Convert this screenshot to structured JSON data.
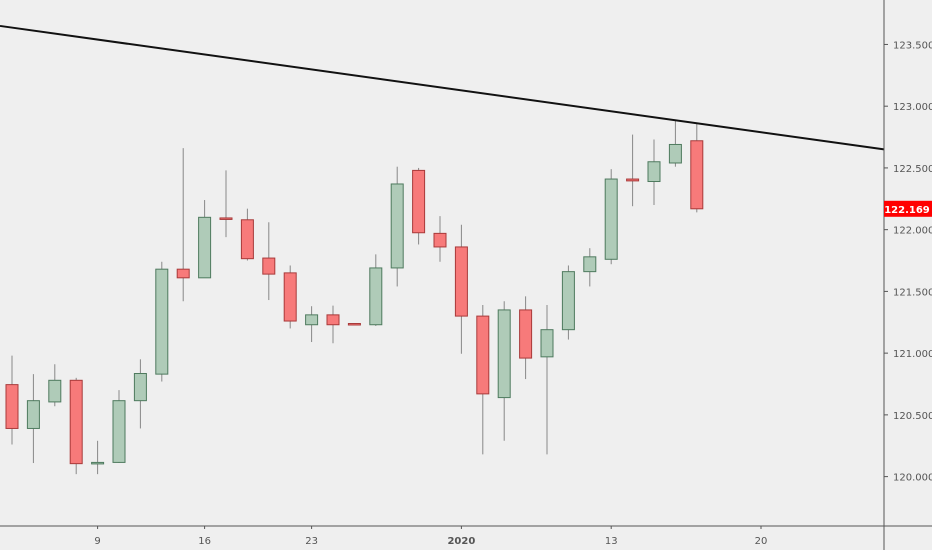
{
  "chart_data": {
    "type": "candlestick",
    "title": "",
    "colors": {
      "up_fill": "#afcbb8",
      "up_stroke": "#4e7a5e",
      "down_fill": "#f77a7a",
      "down_stroke": "#a83a3a",
      "wick": "#888888",
      "trendline": "#111111",
      "last_price_bg": "#ff0000",
      "background": "#efefef",
      "axis": "#555555"
    },
    "ylim": [
      119.6,
      123.86
    ],
    "y_ticks": [
      "120.000",
      "120.500",
      "121.000",
      "121.500",
      "122.000",
      "122.500",
      "123.000",
      "123.500"
    ],
    "x_tick_labels": [
      {
        "label": "9",
        "bar": 4
      },
      {
        "label": "16",
        "bar": 9
      },
      {
        "label": "23",
        "bar": 14
      },
      {
        "label": "2020",
        "bar": 21,
        "bold": true
      },
      {
        "label": "13",
        "bar": 28
      },
      {
        "label": "20",
        "bar": 35
      }
    ],
    "last_price": "122.169",
    "candles": [
      [
        120.745,
        120.98,
        120.26,
        120.39
      ],
      [
        120.39,
        120.83,
        120.11,
        120.615
      ],
      [
        120.605,
        120.91,
        120.57,
        120.78
      ],
      [
        120.78,
        120.8,
        120.02,
        120.105
      ],
      [
        120.11,
        120.29,
        120.02,
        120.115
      ],
      [
        120.115,
        120.7,
        120.11,
        120.615
      ],
      [
        120.615,
        120.95,
        120.39,
        120.835
      ],
      [
        120.83,
        121.74,
        120.77,
        121.68
      ],
      [
        121.68,
        122.66,
        121.42,
        121.61
      ],
      [
        121.61,
        122.24,
        121.61,
        122.1
      ],
      [
        122.095,
        122.48,
        121.94,
        122.085
      ],
      [
        122.08,
        122.17,
        121.75,
        121.765
      ],
      [
        121.77,
        122.06,
        121.43,
        121.64
      ],
      [
        121.65,
        121.71,
        121.2,
        121.26
      ],
      [
        121.23,
        121.38,
        121.09,
        121.31
      ],
      [
        121.31,
        121.385,
        121.08,
        121.23
      ],
      [
        121.24,
        121.24,
        121.23,
        121.235
      ],
      [
        121.23,
        121.8,
        121.22,
        121.69
      ],
      [
        121.69,
        122.51,
        121.54,
        122.37
      ],
      [
        122.48,
        122.5,
        121.88,
        121.975
      ],
      [
        121.97,
        122.11,
        121.74,
        121.86
      ],
      [
        121.86,
        122.04,
        120.995,
        121.3
      ],
      [
        121.3,
        121.39,
        120.18,
        120.67
      ],
      [
        120.64,
        121.42,
        120.29,
        121.35
      ],
      [
        121.35,
        121.46,
        120.79,
        120.96
      ],
      [
        120.97,
        121.39,
        120.18,
        121.19
      ],
      [
        121.19,
        121.71,
        121.11,
        121.66
      ],
      [
        121.66,
        121.85,
        121.54,
        121.78
      ],
      [
        121.76,
        122.49,
        121.72,
        122.41
      ],
      [
        122.41,
        122.77,
        122.19,
        122.395
      ],
      [
        122.39,
        122.73,
        122.2,
        122.55
      ],
      [
        122.54,
        122.88,
        122.51,
        122.69
      ],
      [
        122.72,
        122.86,
        122.14,
        122.169
      ]
    ],
    "candle_fields": [
      "open",
      "high",
      "low",
      "close"
    ],
    "trendline": {
      "bar1": -0.56,
      "price1": 123.65,
      "bar2": 40.75,
      "price2": 122.65
    }
  }
}
